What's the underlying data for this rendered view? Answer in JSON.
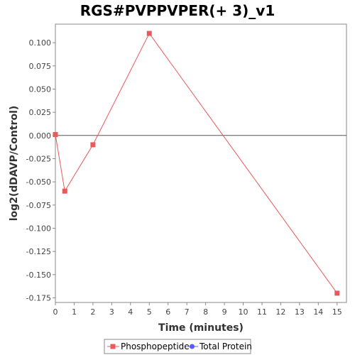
{
  "chart_data": {
    "type": "line",
    "title": "RGS#PVPPVPER(+ 3)_v1",
    "xlabel": "Time (minutes)",
    "ylabel": "log2(dDAVP/Control)",
    "xlim": [
      0,
      15.5
    ],
    "ylim": [
      -0.18,
      0.12
    ],
    "x_ticks": [
      0,
      1,
      2,
      3,
      4,
      5,
      6,
      7,
      8,
      9,
      10,
      11,
      12,
      13,
      14,
      15
    ],
    "y_ticks": [
      0.1,
      0.075,
      0.05,
      0.025,
      0.0,
      -0.025,
      -0.05,
      -0.075,
      -0.1,
      -0.125,
      -0.15,
      -0.175
    ],
    "y_tick_labels": [
      "0.100",
      "0.075",
      "0.050",
      "0.025",
      "0.000",
      "-0.025",
      "-0.050",
      "-0.075",
      "-0.100",
      "-0.125",
      "-0.150",
      "-0.175"
    ],
    "zero_line": 0,
    "series": [
      {
        "name": "Phosphopeptide",
        "color": "#e8595a",
        "marker": "square",
        "x": [
          0,
          0.5,
          2,
          5,
          15
        ],
        "y": [
          0.001,
          -0.06,
          -0.01,
          0.11,
          -0.17
        ]
      },
      {
        "name": "Total Protein",
        "color": "#5b5bf5",
        "marker": "circle",
        "x": [],
        "y": []
      }
    ],
    "legend_position": "bottom-center"
  }
}
